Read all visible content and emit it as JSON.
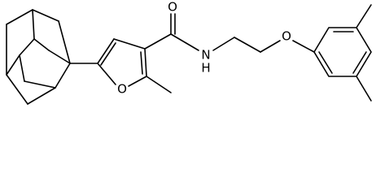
{
  "atoms": {
    "carbonyl_oxygen": "O",
    "amide_nitrogen": "N",
    "amide_hydrogen": "H",
    "furan_oxygen": "O",
    "ether_oxygen": "O"
  }
}
